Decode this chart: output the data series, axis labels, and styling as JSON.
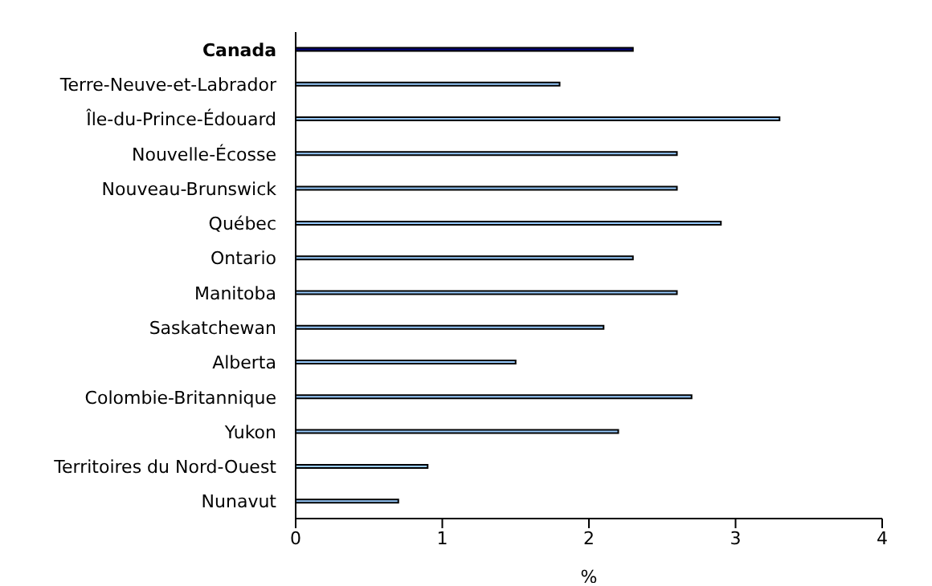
{
  "chart_data": {
    "type": "bar",
    "orientation": "horizontal",
    "xlabel": "%",
    "categories": [
      "Canada",
      "Terre-Neuve-et-Labrador",
      "Île-du-Prince-Édouard",
      "Nouvelle-Écosse",
      "Nouveau-Brunswick",
      "Québec",
      "Ontario",
      "Manitoba",
      "Saskatchewan",
      "Alberta",
      "Colombie-Britannique",
      "Yukon",
      "Territoires du Nord-Ouest",
      "Nunavut"
    ],
    "values": [
      2.3,
      1.8,
      3.3,
      2.6,
      2.6,
      2.9,
      2.3,
      2.6,
      2.1,
      1.5,
      2.7,
      2.2,
      0.9,
      0.7
    ],
    "colors": [
      "#000080",
      "#99ccff",
      "#99ccff",
      "#99ccff",
      "#99ccff",
      "#99ccff",
      "#99ccff",
      "#99ccff",
      "#99ccff",
      "#99ccff",
      "#99ccff",
      "#99ccff",
      "#99ccff",
      "#99ccff"
    ],
    "xlim": [
      0,
      4
    ],
    "xticks": [
      0,
      1,
      2,
      3,
      4
    ],
    "grid": false,
    "legend": false
  }
}
